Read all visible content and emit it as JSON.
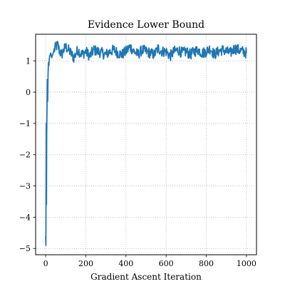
{
  "chart_data": {
    "type": "line",
    "title": "Evidence Lower Bound",
    "xlabel": "Gradient Ascent Iteration",
    "ylabel": "",
    "xlim": [
      -50,
      1050
    ],
    "ylim": [
      -5.2,
      1.85
    ],
    "xticks": [
      0,
      200,
      400,
      600,
      800,
      1000
    ],
    "yticks": [
      -5,
      -4,
      -3,
      -2,
      -1,
      0,
      1
    ],
    "xtick_labels": [
      "0",
      "200",
      "400",
      "600",
      "800",
      "1000"
    ],
    "ytick_labels": [
      "−5",
      "−4",
      "−3",
      "−2",
      "−1",
      "0",
      "1"
    ],
    "grid": true,
    "legend": "none",
    "series": [
      {
        "color": "#1f77b4",
        "x": [
          0,
          1,
          2,
          3,
          4,
          5,
          6,
          7,
          8,
          9,
          10,
          12,
          14,
          16,
          18,
          20,
          25,
          30,
          40,
          50,
          60,
          70,
          80,
          90,
          100,
          120,
          140,
          160,
          180,
          200,
          220,
          240,
          260,
          280,
          300,
          320,
          340,
          360,
          380,
          400,
          420,
          440,
          460,
          480,
          500,
          520,
          540,
          560,
          580,
          600,
          620,
          640,
          660,
          680,
          700,
          720,
          740,
          760,
          780,
          800,
          820,
          840,
          860,
          880,
          900,
          920,
          940,
          960,
          980,
          1000
        ],
        "y": [
          -4.6,
          -4.9,
          -3.0,
          -1.0,
          -3.6,
          -1.5,
          -0.9,
          -0.4,
          0.4,
          0.1,
          -0.3,
          0.6,
          0.95,
          0.85,
          1.05,
          1.15,
          1.25,
          1.1,
          1.3,
          1.45,
          1.5,
          1.3,
          1.2,
          1.35,
          1.45,
          1.3,
          1.1,
          1.35,
          1.2,
          1.3,
          1.15,
          1.35,
          1.3,
          1.25,
          1.2,
          1.3,
          1.35,
          1.25,
          1.2,
          1.3,
          1.45,
          1.3,
          1.2,
          1.35,
          1.3,
          1.25,
          1.2,
          1.4,
          1.3,
          1.3,
          1.15,
          1.3,
          1.35,
          1.25,
          1.3,
          1.2,
          1.3,
          1.35,
          1.25,
          1.3,
          1.4,
          1.2,
          1.3,
          1.35,
          1.3,
          1.25,
          1.4,
          1.35,
          1.3,
          1.25
        ]
      }
    ]
  }
}
